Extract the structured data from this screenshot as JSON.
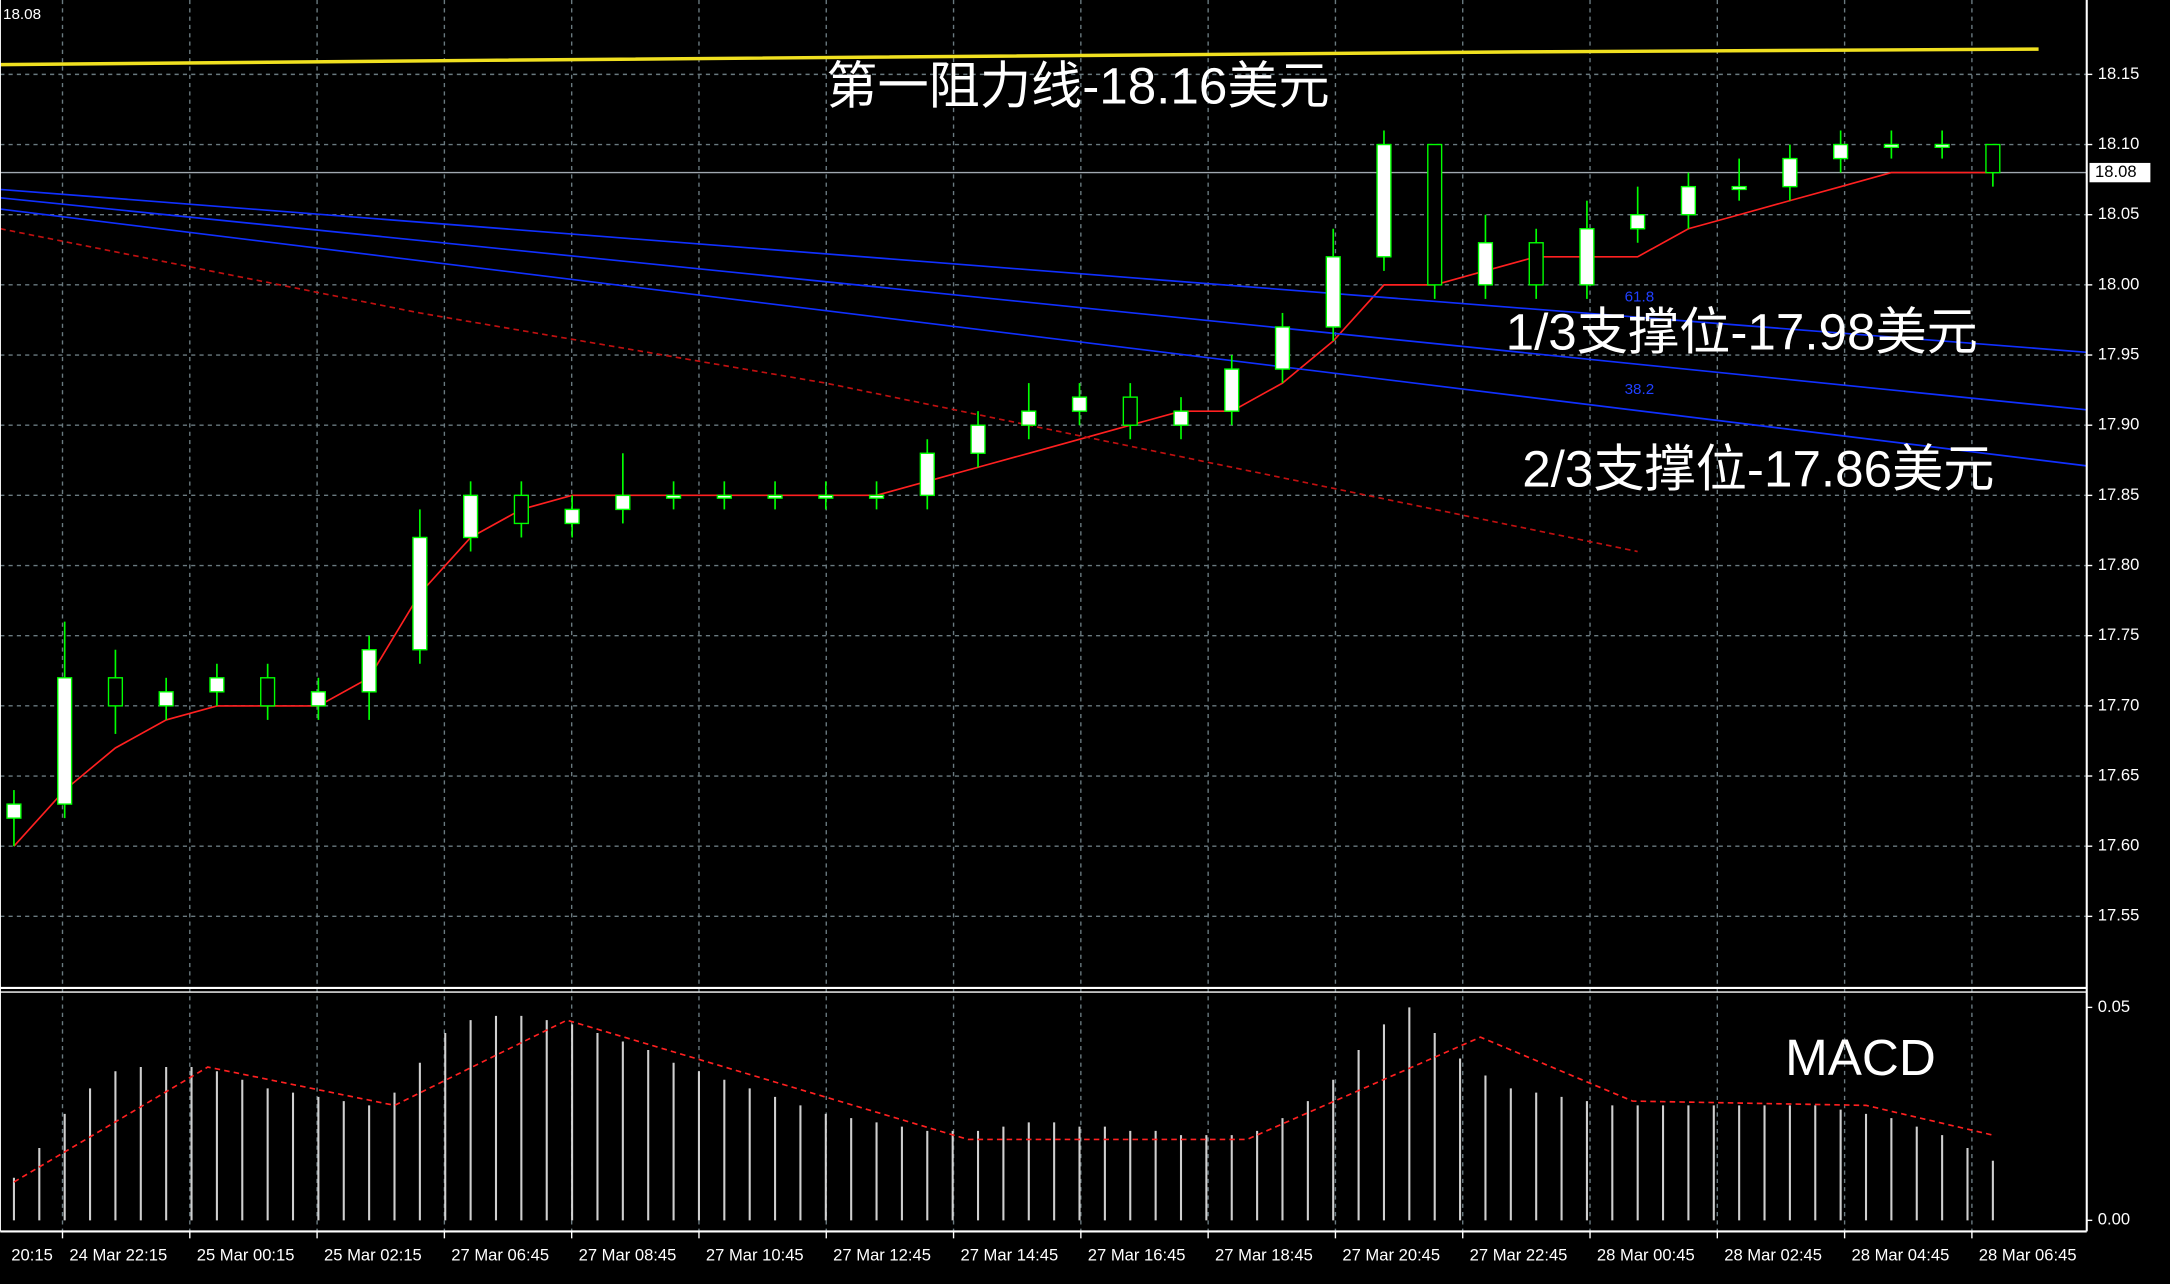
{
  "chart_data": [
    {
      "type": "candlestick",
      "current_price": 18.08,
      "annotations": [
        "第一阻力线-18.16美元",
        "1/3支撑位-17.98美元",
        "2/3支撑位-17.86美元"
      ],
      "fib_labels": [
        "61.8",
        "38.2"
      ],
      "x_labels": [
        "20:15",
        "24 Mar 22:15",
        "25 Mar 00:15",
        "25 Mar 02:15",
        "27 Mar 06:45",
        "27 Mar 08:45",
        "27 Mar 10:45",
        "27 Mar 12:45",
        "27 Mar 14:45",
        "27 Mar 16:45",
        "27 Mar 18:45",
        "27 Mar 20:45",
        "27 Mar 22:45",
        "28 Mar 00:45",
        "28 Mar 02:45",
        "28 Mar 04:45",
        "28 Mar 06:45"
      ],
      "xlim": [
        -0.27,
        40.85
      ],
      "ylim": [
        17.5,
        18.203
      ],
      "yticks": [
        18.15,
        {
          "value": 18.1,
          "label": "18.10"
        },
        18.05,
        {
          "value": 18.0,
          "label": "18.00"
        },
        17.95,
        {
          "value": 17.9,
          "label": "17.90"
        },
        17.85,
        {
          "value": 17.8,
          "label": "17.80"
        },
        17.75,
        {
          "value": 17.7,
          "label": "17.70"
        },
        17.65,
        {
          "value": 17.6,
          "label": "17.60"
        },
        17.55
      ],
      "grid": true,
      "up_color": "#ffffff",
      "down_color": "#000000",
      "wick_color": "#00ff00",
      "open": [
        17.62,
        17.63,
        17.72,
        17.7,
        17.71,
        17.72,
        17.7,
        17.71,
        17.74,
        17.82,
        17.85,
        17.83,
        17.84,
        17.85,
        17.85,
        17.85,
        17.85,
        17.85,
        17.85,
        17.88,
        17.9,
        17.91,
        17.92,
        17.9,
        17.91,
        17.94,
        17.97,
        18.02,
        18.1,
        18.0,
        18.03,
        18.0,
        18.04,
        18.05,
        18.07,
        18.07,
        18.09,
        18.1,
        18.1,
        18.1
      ],
      "high": [
        17.64,
        17.76,
        17.74,
        17.72,
        17.73,
        17.73,
        17.72,
        17.75,
        17.84,
        17.86,
        17.86,
        17.85,
        17.88,
        17.86,
        17.86,
        17.86,
        17.86,
        17.86,
        17.89,
        17.91,
        17.93,
        17.93,
        17.93,
        17.92,
        17.95,
        17.98,
        18.04,
        18.11,
        18.1,
        18.05,
        18.04,
        18.06,
        18.07,
        18.08,
        18.09,
        18.1,
        18.11,
        18.11,
        18.11,
        18.1
      ],
      "low": [
        17.6,
        17.62,
        17.68,
        17.69,
        17.7,
        17.69,
        17.69,
        17.69,
        17.73,
        17.81,
        17.82,
        17.82,
        17.83,
        17.84,
        17.84,
        17.84,
        17.84,
        17.84,
        17.84,
        17.87,
        17.89,
        17.9,
        17.89,
        17.89,
        17.9,
        17.93,
        17.96,
        18.01,
        17.99,
        17.99,
        17.99,
        17.99,
        18.03,
        18.04,
        18.06,
        18.06,
        18.08,
        18.09,
        18.09,
        18.07
      ],
      "close": [
        17.63,
        17.72,
        17.7,
        17.71,
        17.72,
        17.7,
        17.71,
        17.74,
        17.82,
        17.85,
        17.83,
        17.84,
        17.85,
        17.85,
        17.85,
        17.85,
        17.85,
        17.85,
        17.88,
        17.9,
        17.91,
        17.92,
        17.9,
        17.91,
        17.94,
        17.97,
        18.02,
        18.1,
        18.0,
        18.03,
        18.0,
        18.04,
        18.05,
        18.07,
        18.07,
        18.09,
        18.1,
        18.1,
        18.1,
        18.08
      ],
      "lines": [
        {
          "color": "#ff2020",
          "dashed": false,
          "x": [
            0,
            1,
            2,
            3,
            4,
            5,
            6,
            7,
            8,
            9,
            10,
            11,
            12,
            13,
            14,
            15,
            16,
            17,
            18,
            19,
            20,
            21,
            22,
            23,
            24,
            25,
            26,
            27,
            28,
            29,
            30,
            31,
            32,
            33,
            34,
            35,
            36,
            37,
            38,
            39
          ],
          "values": [
            17.6,
            17.64,
            17.67,
            17.69,
            17.7,
            17.7,
            17.7,
            17.72,
            17.78,
            17.82,
            17.84,
            17.85,
            17.85,
            17.85,
            17.85,
            17.85,
            17.85,
            17.85,
            17.86,
            17.87,
            17.88,
            17.89,
            17.9,
            17.91,
            17.91,
            17.93,
            17.96,
            18.0,
            18.0,
            18.01,
            18.02,
            18.02,
            18.02,
            18.04,
            18.05,
            18.06,
            18.07,
            18.08,
            18.08,
            18.08
          ]
        },
        {
          "color": "#c01010",
          "dashed": true,
          "x": [
            -0.27,
            8,
            16,
            24,
            32
          ],
          "values": [
            18.04,
            17.98,
            17.93,
            17.87,
            17.81
          ]
        },
        {
          "color": "#1030ff",
          "dashed": false,
          "x": [
            -0.27,
            40.85
          ],
          "values": [
            18.068,
            17.952
          ]
        },
        {
          "color": "#1030ff",
          "dashed": false,
          "x": [
            -0.27,
            40.85
          ],
          "values": [
            18.062,
            17.911
          ]
        },
        {
          "color": "#1030ff",
          "dashed": false,
          "x": [
            -0.27,
            40.85
          ],
          "values": [
            18.054,
            17.871
          ]
        },
        {
          "color": "#f0e020",
          "dashed": false,
          "x": [
            -0.27,
            9.3,
            29.7,
            39.9
          ],
          "values": [
            18.157,
            18.16,
            18.166,
            18.168
          ]
        }
      ]
    },
    {
      "type": "macd",
      "title": "MACD",
      "ylim": [
        -0.0026,
        0.0536
      ],
      "yticks": [
        0.05,
        {
          "value": 0,
          "label": "0.00"
        }
      ],
      "bar_color": "#d0d0d0",
      "values": [
        0.01,
        0.017,
        0.025,
        0.031,
        0.035,
        0.036,
        0.036,
        0.036,
        0.035,
        0.033,
        0.031,
        0.03,
        0.029,
        0.028,
        0.027,
        0.03,
        0.037,
        0.044,
        0.047,
        0.048,
        0.048,
        0.047,
        0.046,
        0.044,
        0.042,
        0.04,
        0.037,
        0.035,
        0.033,
        0.031,
        0.029,
        0.027,
        0.025,
        0.024,
        0.023,
        0.022,
        0.021,
        0.021,
        0.021,
        0.022,
        0.023,
        0.023,
        0.022,
        0.022,
        0.021,
        0.021,
        0.02,
        0.02,
        0.02,
        0.021,
        0.024,
        0.028,
        0.033,
        0.04,
        0.046,
        0.05,
        0.044,
        0.038,
        0.034,
        0.031,
        0.03,
        0.029,
        0.028,
        0.027,
        0.027,
        0.027,
        0.027,
        0.027,
        0.027,
        0.027,
        0.027,
        0.027,
        0.026,
        0.025,
        0.024,
        0.022,
        0.02,
        0.017,
        0.014
      ],
      "signal": {
        "color": "#ff2020",
        "x": [
          0,
          3.82,
          7.5,
          10.9,
          18.8,
          24.3,
          28.9,
          31.9,
          36.5,
          39
        ],
        "values": [
          0.009,
          0.036,
          0.027,
          0.047,
          0.019,
          0.019,
          0.043,
          0.028,
          0.027,
          0.02
        ]
      }
    }
  ]
}
